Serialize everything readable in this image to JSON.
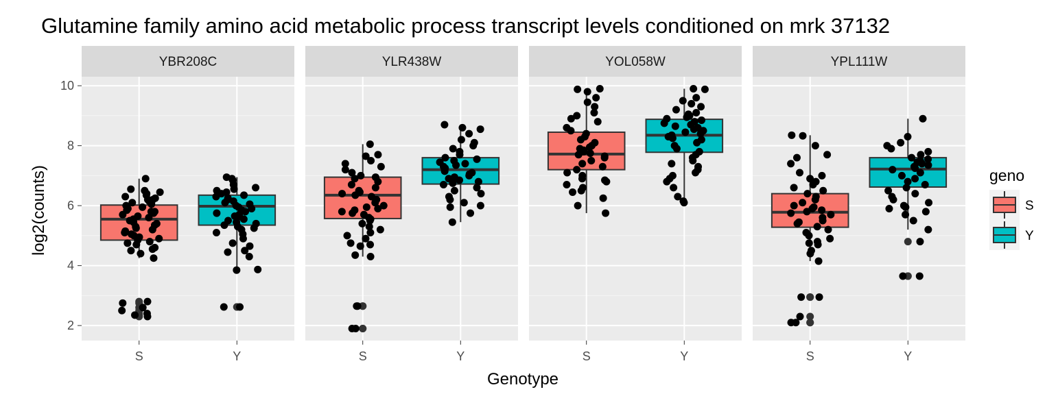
{
  "chart_data": {
    "type": "box",
    "title": "Glutamine family amino acid metabolic process transcript levels conditioned on mrk 37132",
    "xlabel": "Genotype",
    "ylabel": "log2(counts)",
    "ylim": [
      1.5,
      10.3
    ],
    "yticks": [
      2,
      4,
      6,
      8,
      10
    ],
    "categories": [
      "S",
      "Y"
    ],
    "grid": true,
    "legend": {
      "title": "geno",
      "placement": "right",
      "entries": [
        {
          "label": "S",
          "color": "#F8766D"
        },
        {
          "label": "Y",
          "color": "#00BFC4"
        }
      ]
    },
    "panels": [
      {
        "name": "YBR208C",
        "boxes": [
          {
            "geno": "S",
            "min": 4.25,
            "q1": 4.85,
            "median": 5.55,
            "q3": 6.02,
            "max": 6.9,
            "outliers": [
              2.75,
              2.8,
              2.6,
              2.5,
              2.4,
              2.35,
              2.3
            ],
            "points": [
              6.9,
              6.55,
              6.5,
              6.45,
              6.4,
              6.35,
              6.3,
              6.25,
              6.2,
              6.2,
              6.15,
              6.1,
              6.05,
              6.0,
              5.95,
              5.9,
              5.85,
              5.8,
              5.8,
              5.75,
              5.7,
              5.65,
              5.6,
              5.55,
              5.5,
              5.45,
              5.4,
              5.35,
              5.3,
              5.25,
              5.2,
              5.15,
              5.1,
              5.05,
              5.0,
              4.95,
              4.9,
              4.85,
              4.8,
              4.75,
              4.7,
              4.6,
              4.55,
              4.5,
              4.4,
              4.25,
              2.8,
              2.75,
              2.6,
              2.5,
              2.4,
              2.35,
              2.3
            ]
          },
          {
            "geno": "Y",
            "min": 3.85,
            "q1": 5.35,
            "median": 5.98,
            "q3": 6.35,
            "max": 6.95,
            "outliers": [
              2.62,
              2.62
            ],
            "points": [
              6.95,
              6.9,
              6.85,
              6.7,
              6.6,
              6.55,
              6.5,
              6.45,
              6.4,
              6.35,
              6.3,
              6.25,
              6.2,
              6.15,
              6.1,
              6.05,
              6.0,
              5.95,
              5.9,
              5.85,
              5.8,
              5.75,
              5.7,
              5.65,
              5.6,
              5.55,
              5.5,
              5.45,
              5.4,
              5.35,
              5.3,
              5.25,
              5.2,
              5.1,
              5.05,
              4.9,
              4.75,
              4.65,
              4.5,
              4.45,
              4.3,
              3.87,
              3.85,
              2.62,
              2.62
            ]
          }
        ]
      },
      {
        "name": "YLR438W",
        "boxes": [
          {
            "geno": "S",
            "min": 4.3,
            "q1": 5.57,
            "median": 6.35,
            "q3": 6.95,
            "max": 8.05,
            "outliers": [
              2.65,
              2.65,
              1.9,
              1.9
            ],
            "points": [
              8.05,
              7.7,
              7.65,
              7.5,
              7.4,
              7.3,
              7.2,
              7.1,
              7.0,
              6.95,
              6.9,
              6.8,
              6.7,
              6.6,
              6.5,
              6.45,
              6.4,
              6.35,
              6.3,
              6.2,
              6.1,
              6.0,
              5.95,
              5.9,
              5.85,
              5.8,
              5.75,
              5.7,
              5.6,
              5.55,
              5.5,
              5.4,
              5.3,
              5.2,
              5.1,
              5.0,
              4.9,
              4.75,
              4.7,
              4.65,
              4.35,
              4.3,
              2.65,
              2.65,
              1.9,
              1.9
            ]
          },
          {
            "geno": "Y",
            "min": 5.45,
            "q1": 6.72,
            "median": 7.2,
            "q3": 7.6,
            "max": 8.7,
            "outliers": [],
            "points": [
              8.7,
              8.6,
              8.55,
              8.4,
              8.2,
              8.1,
              8.0,
              7.9,
              7.8,
              7.7,
              7.6,
              7.55,
              7.5,
              7.45,
              7.4,
              7.35,
              7.3,
              7.25,
              7.2,
              7.15,
              7.1,
              7.05,
              7.0,
              6.95,
              6.9,
              6.85,
              6.8,
              6.75,
              6.7,
              6.6,
              6.5,
              6.4,
              6.3,
              6.2,
              6.1,
              6.0,
              5.95,
              5.75,
              5.45
            ]
          }
        ]
      },
      {
        "name": "YOL058W",
        "boxes": [
          {
            "geno": "S",
            "min": 5.75,
            "q1": 7.2,
            "median": 7.72,
            "q3": 8.45,
            "max": 9.9,
            "outliers": [],
            "points": [
              9.9,
              9.88,
              9.8,
              9.6,
              9.45,
              9.3,
              9.1,
              9.0,
              8.9,
              8.8,
              8.6,
              8.5,
              8.4,
              8.3,
              8.2,
              8.1,
              8.0,
              7.95,
              7.9,
              7.85,
              7.8,
              7.75,
              7.7,
              7.65,
              7.6,
              7.5,
              7.4,
              7.3,
              7.2,
              7.1,
              7.0,
              6.9,
              6.85,
              6.8,
              6.7,
              6.6,
              6.5,
              6.45,
              6.25,
              6.0,
              5.75
            ]
          },
          {
            "geno": "Y",
            "min": 6.1,
            "q1": 7.78,
            "median": 8.35,
            "q3": 8.88,
            "max": 9.9,
            "outliers": [],
            "points": [
              9.9,
              9.88,
              9.6,
              9.5,
              9.4,
              9.3,
              9.2,
              9.1,
              9.05,
              9.0,
              8.95,
              8.9,
              8.85,
              8.8,
              8.75,
              8.7,
              8.65,
              8.6,
              8.55,
              8.5,
              8.45,
              8.4,
              8.35,
              8.3,
              8.25,
              8.2,
              8.1,
              8.0,
              7.9,
              7.8,
              7.7,
              7.6,
              7.5,
              7.4,
              7.3,
              7.2,
              7.1,
              7.0,
              6.9,
              6.8,
              6.6,
              6.3,
              6.15,
              6.1
            ]
          }
        ]
      },
      {
        "name": "YPL111W",
        "boxes": [
          {
            "geno": "S",
            "min": 4.15,
            "q1": 5.28,
            "median": 5.78,
            "q3": 6.4,
            "max": 8.35,
            "outliers": [
              2.95,
              2.95,
              2.3,
              2.1,
              2.1
            ],
            "points": [
              8.35,
              8.33,
              8.0,
              7.7,
              7.6,
              7.4,
              7.1,
              7.0,
              6.9,
              6.8,
              6.7,
              6.6,
              6.5,
              6.4,
              6.3,
              6.2,
              6.1,
              6.0,
              5.95,
              5.9,
              5.85,
              5.8,
              5.75,
              5.7,
              5.6,
              5.5,
              5.45,
              5.4,
              5.3,
              5.2,
              5.1,
              5.0,
              4.9,
              4.8,
              4.75,
              4.7,
              4.5,
              4.4,
              4.15,
              2.95,
              2.95,
              2.3,
              2.1,
              2.1
            ]
          },
          {
            "geno": "Y",
            "min": 5.2,
            "q1": 6.62,
            "median": 7.22,
            "q3": 7.6,
            "max": 8.9,
            "outliers": [
              4.8,
              3.65,
              3.65
            ],
            "points": [
              8.9,
              8.3,
              8.1,
              8.0,
              7.9,
              7.8,
              7.7,
              7.6,
              7.55,
              7.5,
              7.45,
              7.4,
              7.35,
              7.3,
              7.25,
              7.2,
              7.1,
              7.0,
              6.9,
              6.8,
              6.7,
              6.6,
              6.5,
              6.4,
              6.3,
              6.2,
              6.1,
              6.0,
              5.95,
              5.9,
              5.8,
              5.7,
              5.5,
              5.2,
              4.8,
              3.65,
              3.65
            ]
          }
        ]
      }
    ]
  }
}
